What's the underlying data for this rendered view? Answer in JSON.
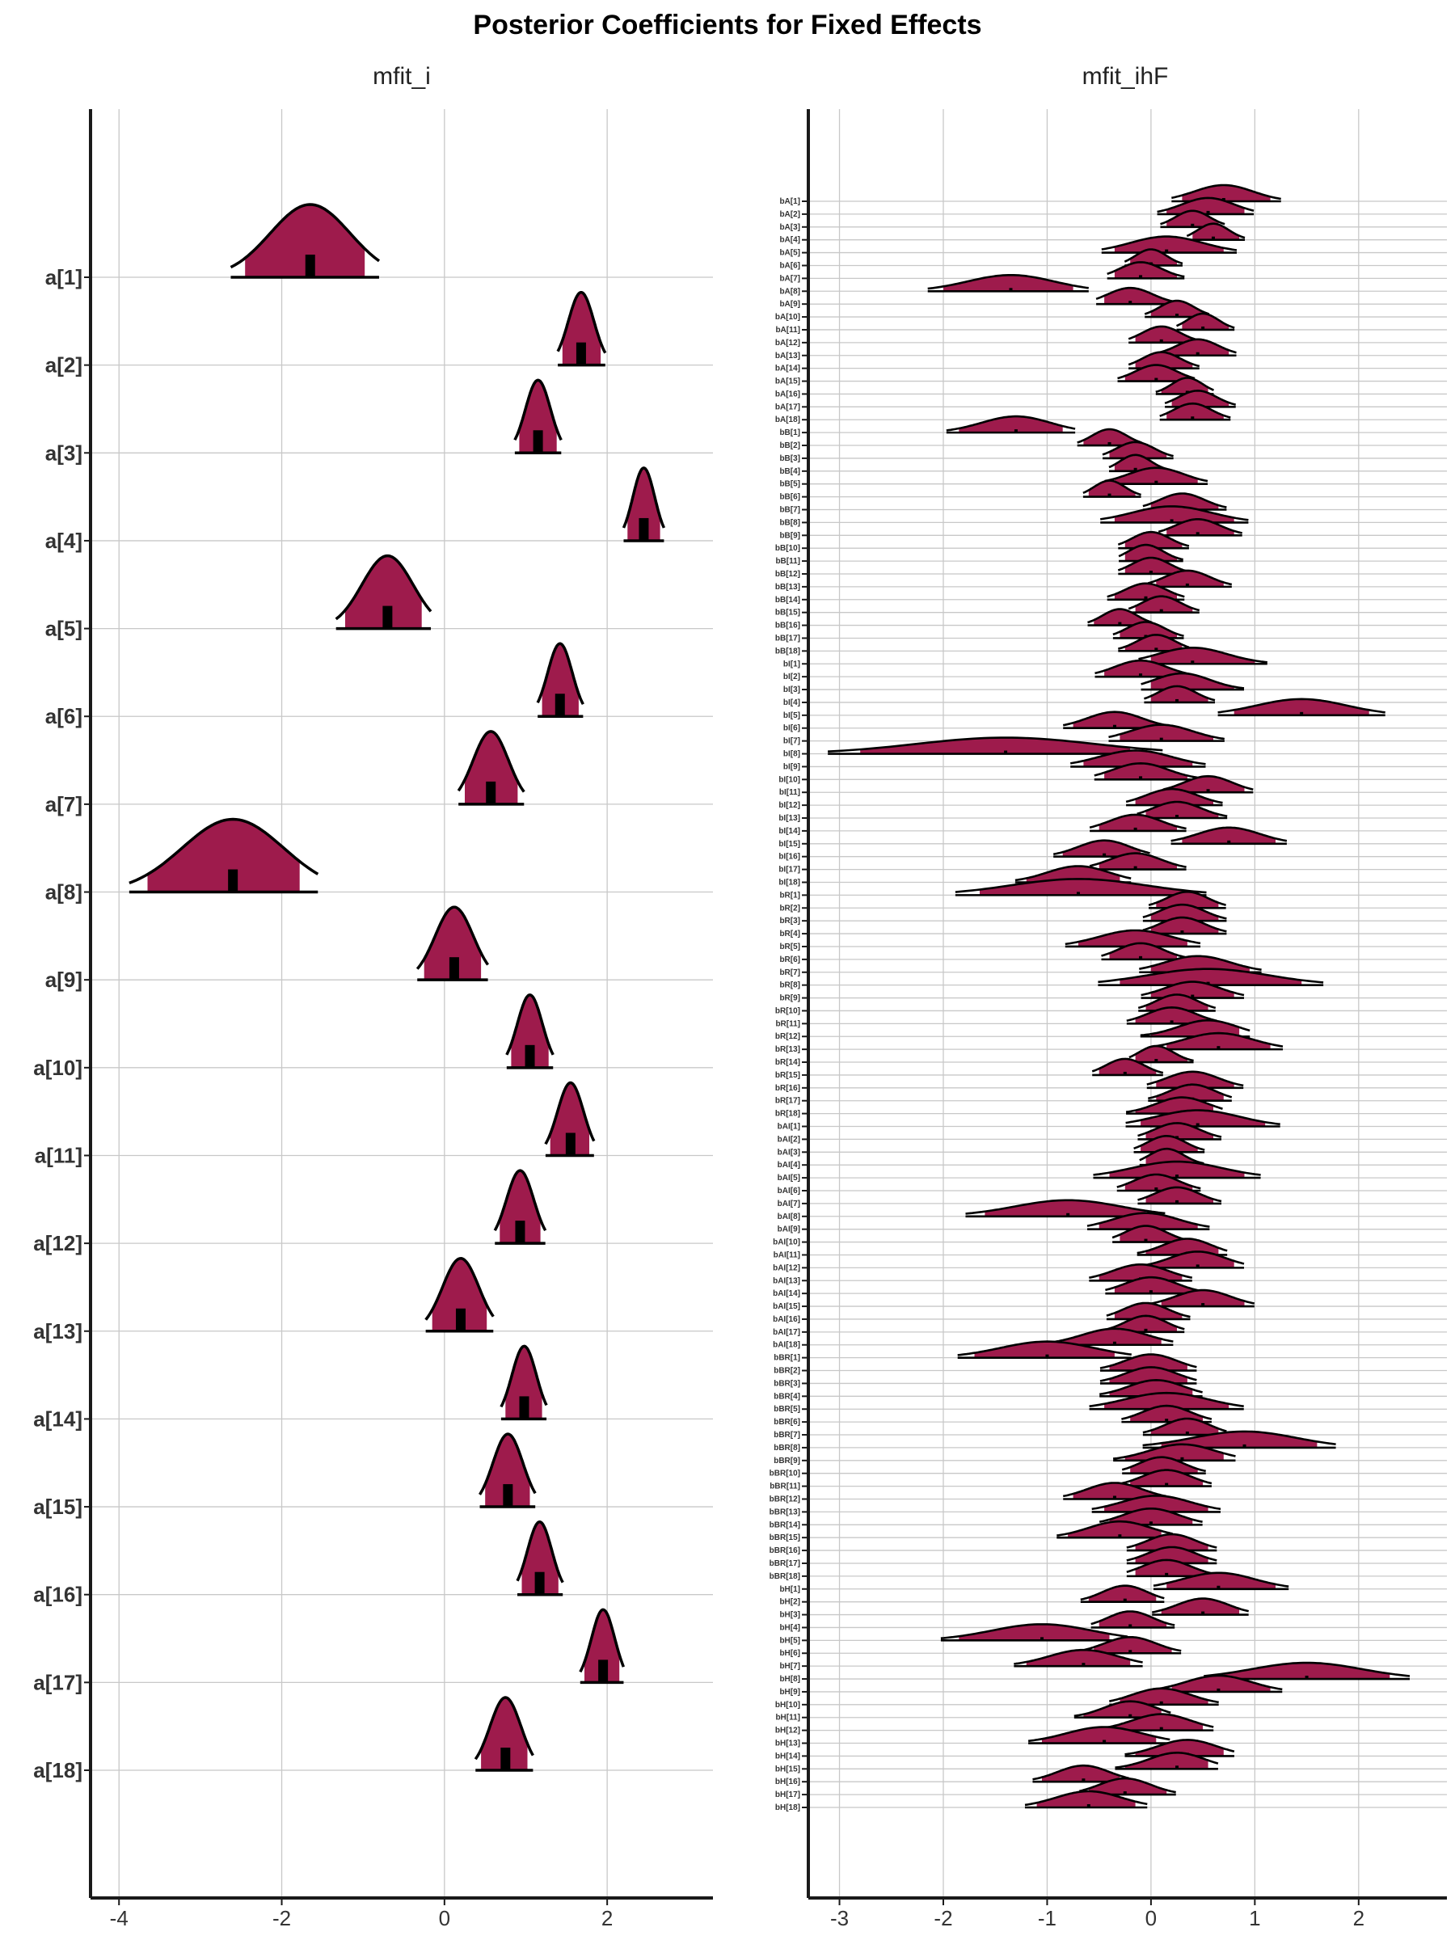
{
  "title": "Posterior Coefficients for Fixed Effects",
  "colors": {
    "fill": "#9e1b4c",
    "outline": "#000000",
    "grid": "#c8c8c8",
    "axis": "#1a1a1a"
  },
  "chart_data": [
    {
      "type": "ridgeline",
      "subtitle": "mfit_i",
      "xlim": [
        -4.35,
        3.3
      ],
      "xticks": [
        -4,
        -2,
        0,
        2
      ],
      "tick_labels": [
        "-4",
        "-2",
        "0",
        "2"
      ],
      "grid": true,
      "categories": [
        "a[1]",
        "a[2]",
        "a[3]",
        "a[4]",
        "a[5]",
        "a[6]",
        "a[7]",
        "a[8]",
        "a[9]",
        "a[10]",
        "a[11]",
        "a[12]",
        "a[13]",
        "a[14]",
        "a[15]",
        "a[16]",
        "a[17]",
        "a[18]"
      ],
      "median": [
        -1.65,
        1.68,
        1.15,
        2.45,
        -0.7,
        1.42,
        0.57,
        -2.6,
        0.12,
        1.05,
        1.55,
        0.93,
        0.2,
        0.98,
        0.78,
        1.17,
        1.95,
        0.75
      ],
      "low": [
        -2.45,
        1.45,
        0.92,
        2.25,
        -1.22,
        1.2,
        0.25,
        -3.65,
        -0.25,
        0.82,
        1.3,
        0.68,
        -0.15,
        0.75,
        0.5,
        0.95,
        1.72,
        0.45
      ],
      "high": [
        -0.98,
        1.92,
        1.38,
        2.65,
        -0.28,
        1.65,
        0.9,
        -1.78,
        0.45,
        1.28,
        1.78,
        1.18,
        0.52,
        1.2,
        1.05,
        1.4,
        2.15,
        1.02
      ]
    },
    {
      "type": "ridgeline",
      "subtitle": "mfit_ihF",
      "xlim": [
        -3.3,
        2.85
      ],
      "xticks": [
        -3,
        -2,
        -1,
        0,
        1,
        2
      ],
      "tick_labels": [
        "-3",
        "-2",
        "-1",
        "0",
        "1",
        "2"
      ],
      "grid": true,
      "categories": [
        "bA[1]",
        "bA[2]",
        "bA[3]",
        "bA[4]",
        "bA[5]",
        "bA[6]",
        "bA[7]",
        "bA[8]",
        "bA[9]",
        "bA[10]",
        "bA[11]",
        "bA[12]",
        "bA[13]",
        "bA[14]",
        "bA[15]",
        "bA[16]",
        "bA[17]",
        "bA[18]",
        "bB[1]",
        "bB[2]",
        "bB[3]",
        "bB[4]",
        "bB[5]",
        "bB[6]",
        "bB[7]",
        "bB[8]",
        "bB[9]",
        "bB[10]",
        "bB[11]",
        "bB[12]",
        "bB[13]",
        "bB[14]",
        "bB[15]",
        "bB[16]",
        "bB[17]",
        "bB[18]",
        "bI[1]",
        "bI[2]",
        "bI[3]",
        "bI[4]",
        "bI[5]",
        "bI[6]",
        "bI[7]",
        "bI[8]",
        "bI[9]",
        "bI[10]",
        "bI[11]",
        "bI[12]",
        "bI[13]",
        "bI[14]",
        "bI[15]",
        "bI[16]",
        "bI[17]",
        "bI[18]",
        "bR[1]",
        "bR[2]",
        "bR[3]",
        "bR[4]",
        "bR[5]",
        "bR[6]",
        "bR[7]",
        "bR[8]",
        "bR[9]",
        "bR[10]",
        "bR[11]",
        "bR[12]",
        "bR[13]",
        "bR[14]",
        "bR[15]",
        "bR[16]",
        "bR[17]",
        "bR[18]",
        "bAI[1]",
        "bAI[2]",
        "bAI[3]",
        "bAI[4]",
        "bAI[5]",
        "bAI[6]",
        "bAI[7]",
        "bAI[8]",
        "bAI[9]",
        "bAI[10]",
        "bAI[11]",
        "bAI[12]",
        "bAI[13]",
        "bAI[14]",
        "bAI[15]",
        "bAI[16]",
        "bAI[17]",
        "bAI[18]",
        "bBR[1]",
        "bBR[2]",
        "bBR[3]",
        "bBR[4]",
        "bBR[5]",
        "bBR[6]",
        "bBR[7]",
        "bBR[8]",
        "bBR[9]",
        "bBR[10]",
        "bBR[11]",
        "bBR[12]",
        "bBR[13]",
        "bBR[14]",
        "bBR[15]",
        "bBR[16]",
        "bBR[17]",
        "bBR[18]",
        "bH[1]",
        "bH[2]",
        "bH[3]",
        "bH[4]",
        "bH[5]",
        "bH[6]",
        "bH[7]",
        "bH[8]",
        "bH[9]",
        "bH[10]",
        "bH[11]",
        "bH[12]",
        "bH[13]",
        "bH[14]",
        "bH[15]",
        "bH[16]",
        "bH[17]",
        "bH[18]"
      ],
      "median": [
        0.7,
        0.55,
        0.4,
        0.6,
        0.15,
        0.0,
        -0.1,
        -1.35,
        -0.2,
        0.25,
        0.5,
        0.1,
        0.45,
        0.1,
        0.05,
        0.35,
        0.45,
        0.4,
        -1.3,
        -0.4,
        -0.15,
        -0.15,
        0.05,
        -0.4,
        0.3,
        0.2,
        0.45,
        0.0,
        -0.05,
        0.0,
        0.35,
        -0.05,
        0.1,
        -0.3,
        -0.05,
        0.05,
        0.4,
        -0.1,
        0.3,
        0.25,
        1.45,
        -0.35,
        0.1,
        -1.4,
        -0.15,
        -0.1,
        0.55,
        0.2,
        0.25,
        -0.15,
        0.75,
        -0.45,
        -0.15,
        -0.7,
        -0.7,
        0.35,
        0.3,
        0.3,
        -0.15,
        -0.1,
        0.45,
        0.55,
        0.4,
        0.25,
        0.2,
        0.55,
        0.65,
        0.05,
        -0.25,
        0.4,
        0.4,
        0.3,
        0.45,
        0.25,
        0.15,
        0.15,
        0.25,
        0.05,
        0.25,
        -0.8,
        -0.05,
        -0.05,
        0.35,
        0.45,
        -0.1,
        0.0,
        0.5,
        -0.05,
        -0.05,
        -0.35,
        -1.0,
        0.0,
        0.0,
        0.05,
        0.15,
        0.15,
        0.35,
        0.9,
        0.3,
        0.1,
        0.15,
        -0.35,
        0.05,
        0.0,
        -0.3,
        0.2,
        0.2,
        0.15,
        0.65,
        -0.25,
        0.5,
        -0.2,
        -1.05,
        -0.2,
        -0.65,
        1.5,
        0.65,
        0.1,
        -0.2,
        0.1,
        -0.45,
        0.35,
        0.25,
        -0.65,
        -0.25,
        -0.6
      ],
      "low": [
        0.3,
        0.15,
        0.15,
        0.4,
        -0.35,
        -0.2,
        -0.35,
        -2.0,
        -0.45,
        0.0,
        0.3,
        -0.15,
        0.15,
        -0.15,
        -0.25,
        0.1,
        0.2,
        0.15,
        -1.85,
        -0.65,
        -0.4,
        -0.35,
        -0.35,
        -0.6,
        0.0,
        -0.35,
        0.15,
        -0.25,
        -0.25,
        -0.25,
        0.05,
        -0.35,
        -0.15,
        -0.55,
        -0.3,
        -0.25,
        0.0,
        -0.45,
        0.0,
        0.0,
        0.8,
        -0.75,
        -0.3,
        -2.8,
        -0.65,
        -0.45,
        0.2,
        -0.15,
        -0.05,
        -0.5,
        0.3,
        -0.85,
        -0.5,
        -1.2,
        -1.65,
        0.05,
        0.0,
        0.0,
        -0.7,
        -0.4,
        0.0,
        -0.3,
        0.0,
        -0.05,
        -0.15,
        0.0,
        0.15,
        -0.15,
        -0.5,
        0.05,
        0.05,
        -0.15,
        -0.1,
        -0.05,
        -0.1,
        -0.05,
        -0.4,
        -0.25,
        -0.05,
        -1.6,
        -0.5,
        -0.3,
        -0.05,
        0.0,
        -0.5,
        -0.35,
        0.1,
        -0.35,
        -0.35,
        -0.85,
        -1.7,
        -0.4,
        -0.4,
        -0.4,
        -0.45,
        -0.2,
        0.0,
        0.1,
        -0.25,
        -0.2,
        -0.2,
        -0.75,
        -0.45,
        -0.4,
        -0.8,
        -0.15,
        -0.15,
        -0.15,
        0.15,
        -0.6,
        0.1,
        -0.5,
        -1.85,
        -0.55,
        -1.2,
        0.7,
        0.2,
        -0.3,
        -0.65,
        -0.35,
        -1.05,
        -0.15,
        -0.25,
        -1.05,
        -0.6,
        -1.1
      ],
      "high": [
        1.15,
        0.9,
        0.65,
        0.85,
        0.7,
        0.25,
        0.25,
        -0.75,
        0.2,
        0.5,
        0.75,
        0.4,
        0.75,
        0.4,
        0.35,
        0.55,
        0.75,
        0.7,
        -0.85,
        -0.15,
        0.15,
        0.1,
        0.45,
        -0.15,
        0.65,
        0.8,
        0.8,
        0.3,
        0.25,
        0.3,
        0.7,
        0.25,
        0.4,
        -0.05,
        0.25,
        0.3,
        1.0,
        0.3,
        0.8,
        0.55,
        2.1,
        0.05,
        0.6,
        -0.2,
        0.4,
        0.35,
        0.9,
        0.6,
        0.65,
        0.25,
        1.2,
        -0.1,
        0.25,
        -0.3,
        0.3,
        0.65,
        0.65,
        0.65,
        0.35,
        0.25,
        0.95,
        1.45,
        0.8,
        0.55,
        0.55,
        0.85,
        1.15,
        0.35,
        0.05,
        0.8,
        0.7,
        0.6,
        1.1,
        0.6,
        0.45,
        0.45,
        0.9,
        0.4,
        0.6,
        -0.05,
        0.45,
        0.3,
        0.65,
        0.8,
        0.3,
        0.4,
        0.9,
        0.3,
        0.25,
        0.1,
        -0.35,
        0.35,
        0.35,
        0.4,
        0.75,
        0.5,
        0.65,
        1.6,
        0.7,
        0.45,
        0.5,
        0.05,
        0.55,
        0.4,
        0.1,
        0.55,
        0.55,
        0.55,
        1.2,
        0.05,
        0.85,
        0.15,
        -0.4,
        0.2,
        -0.2,
        2.3,
        1.15,
        0.55,
        0.1,
        0.5,
        0.05,
        0.7,
        0.55,
        -0.3,
        0.15,
        -0.15
      ]
    }
  ]
}
